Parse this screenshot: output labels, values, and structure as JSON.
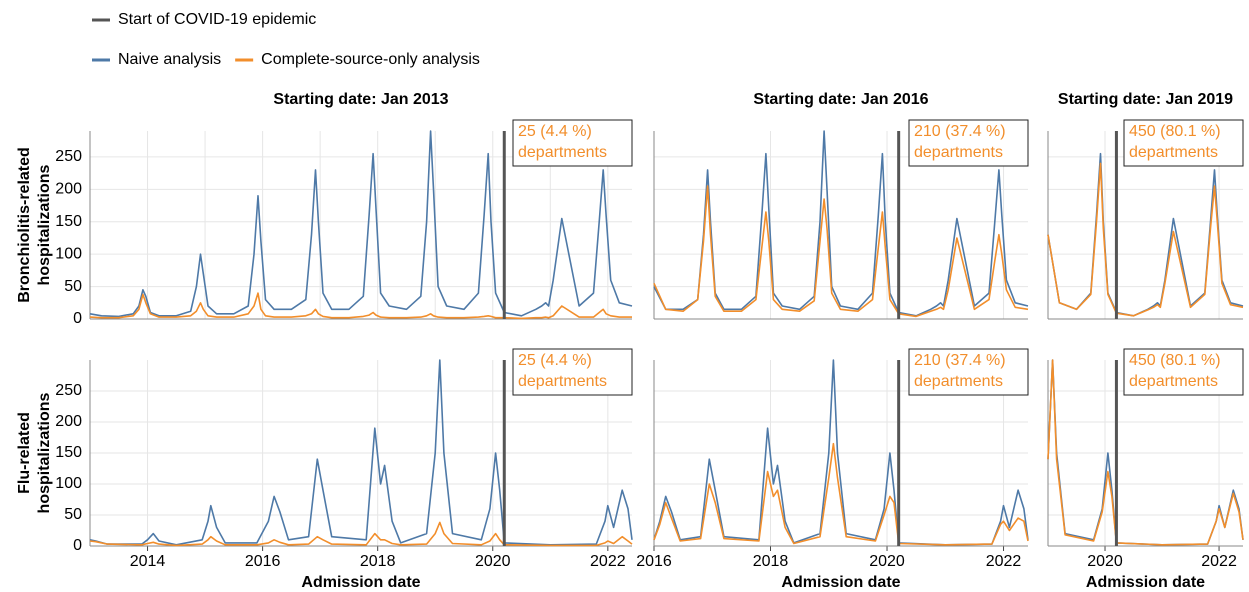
{
  "chart_data": [
    {
      "type": "line",
      "title": "Starting date: Jan 2013",
      "ylabel": [
        "Bronchiolitis-related",
        "hospitalizations"
      ],
      "x": [
        2013.0,
        2013.2,
        2013.5,
        2013.75,
        2013.85,
        2013.92,
        2013.97,
        2014.05,
        2014.2,
        2014.5,
        2014.75,
        2014.85,
        2014.92,
        2014.97,
        2015.05,
        2015.2,
        2015.5,
        2015.75,
        2015.85,
        2015.92,
        2015.97,
        2016.05,
        2016.2,
        2016.5,
        2016.75,
        2016.85,
        2016.92,
        2016.97,
        2017.05,
        2017.2,
        2017.5,
        2017.75,
        2017.85,
        2017.92,
        2017.97,
        2018.05,
        2018.2,
        2018.5,
        2018.75,
        2018.85,
        2018.92,
        2018.97,
        2019.05,
        2019.2,
        2019.5,
        2019.75,
        2019.85,
        2019.92,
        2019.97,
        2020.05,
        2020.2,
        2020.5,
        2020.75,
        2020.85,
        2020.92,
        2020.97,
        2021.05,
        2021.2,
        2021.5,
        2021.75,
        2021.85,
        2021.92,
        2021.97,
        2022.05,
        2022.2,
        2022.42
      ],
      "series": [
        {
          "name": "Naive analysis",
          "color": "#4e79a7",
          "values": [
            8,
            5,
            4,
            8,
            20,
            45,
            35,
            10,
            5,
            5,
            12,
            50,
            100,
            70,
            20,
            8,
            8,
            20,
            100,
            190,
            120,
            30,
            15,
            15,
            30,
            130,
            230,
            150,
            40,
            15,
            15,
            35,
            160,
            255,
            170,
            40,
            20,
            15,
            35,
            150,
            290,
            200,
            50,
            20,
            15,
            40,
            160,
            255,
            150,
            40,
            10,
            5,
            15,
            20,
            25,
            20,
            60,
            155,
            20,
            40,
            150,
            230,
            160,
            60,
            25,
            20
          ]
        },
        {
          "name": "Complete-source-only analysis",
          "color": "#f28e2b",
          "values": [
            3,
            2,
            2,
            5,
            15,
            38,
            25,
            8,
            3,
            3,
            5,
            12,
            25,
            15,
            5,
            3,
            3,
            8,
            20,
            40,
            15,
            5,
            3,
            3,
            5,
            8,
            15,
            8,
            4,
            2,
            2,
            4,
            6,
            10,
            6,
            3,
            2,
            2,
            3,
            5,
            8,
            5,
            3,
            2,
            2,
            3,
            4,
            5,
            4,
            2,
            2,
            1,
            2,
            2,
            3,
            2,
            5,
            20,
            3,
            3,
            10,
            15,
            8,
            5,
            3,
            3
          ]
        }
      ],
      "vline": {
        "x": 2020.2,
        "name": "Start of COVID-19 epidemic",
        "color": "#555555"
      },
      "annotation": [
        "25 (4.4 %)",
        "departments"
      ],
      "xlim": [
        2013.0,
        2022.42
      ],
      "xticks": [
        2014,
        2015,
        2016,
        2017,
        2018,
        2019,
        2020,
        2021,
        2022
      ],
      "ylim": [
        0,
        290
      ],
      "yticks": [
        0,
        50,
        100,
        150,
        200,
        250
      ],
      "grid": true
    },
    {
      "type": "line",
      "title": "Starting date: Jan 2016",
      "x": [
        2016.0,
        2016.2,
        2016.5,
        2016.75,
        2016.85,
        2016.92,
        2016.97,
        2017.05,
        2017.2,
        2017.5,
        2017.75,
        2017.85,
        2017.92,
        2017.97,
        2018.05,
        2018.2,
        2018.5,
        2018.75,
        2018.85,
        2018.92,
        2018.97,
        2019.05,
        2019.2,
        2019.5,
        2019.75,
        2019.85,
        2019.92,
        2019.97,
        2020.05,
        2020.2,
        2020.5,
        2020.75,
        2020.85,
        2020.92,
        2020.97,
        2021.05,
        2021.2,
        2021.5,
        2021.75,
        2021.85,
        2021.92,
        2021.97,
        2022.05,
        2022.2,
        2022.42
      ],
      "series": [
        {
          "color": "#4e79a7",
          "values": [
            50,
            15,
            15,
            30,
            130,
            230,
            150,
            40,
            15,
            15,
            35,
            160,
            255,
            170,
            40,
            20,
            15,
            35,
            150,
            290,
            200,
            50,
            20,
            15,
            40,
            160,
            255,
            150,
            40,
            10,
            5,
            15,
            20,
            25,
            20,
            60,
            155,
            20,
            40,
            150,
            230,
            160,
            60,
            25,
            20
          ]
        },
        {
          "color": "#f28e2b",
          "values": [
            55,
            15,
            12,
            30,
            120,
            205,
            130,
            35,
            12,
            12,
            30,
            110,
            165,
            120,
            30,
            15,
            12,
            28,
            120,
            185,
            140,
            40,
            15,
            12,
            30,
            110,
            165,
            110,
            30,
            8,
            4,
            12,
            15,
            18,
            15,
            45,
            125,
            15,
            30,
            90,
            130,
            100,
            45,
            18,
            15
          ]
        }
      ],
      "vline": {
        "x": 2020.2,
        "color": "#555555"
      },
      "annotation": [
        "210 (37.4 %)",
        "departments"
      ],
      "xlim": [
        2016.0,
        2022.42
      ],
      "xticks": [
        2016,
        2018,
        2020,
        2022
      ],
      "ylim": [
        0,
        290
      ],
      "yticks": [
        0,
        50,
        100,
        150,
        200,
        250
      ],
      "grid": true
    },
    {
      "type": "line",
      "title": "Starting date: Jan 2019",
      "x": [
        2019.0,
        2019.2,
        2019.5,
        2019.75,
        2019.85,
        2019.92,
        2019.97,
        2020.05,
        2020.2,
        2020.5,
        2020.75,
        2020.85,
        2020.92,
        2020.97,
        2021.05,
        2021.2,
        2021.5,
        2021.75,
        2021.85,
        2021.92,
        2021.97,
        2022.05,
        2022.2,
        2022.42
      ],
      "series": [
        {
          "color": "#4e79a7",
          "values": [
            130,
            25,
            15,
            40,
            160,
            255,
            150,
            40,
            10,
            5,
            15,
            20,
            25,
            20,
            60,
            155,
            20,
            40,
            150,
            230,
            160,
            60,
            25,
            20
          ]
        },
        {
          "color": "#f28e2b",
          "values": [
            130,
            25,
            15,
            38,
            150,
            240,
            140,
            38,
            9,
            5,
            14,
            18,
            22,
            18,
            55,
            135,
            18,
            38,
            140,
            205,
            150,
            55,
            22,
            18
          ]
        }
      ],
      "vline": {
        "x": 2020.2,
        "color": "#555555"
      },
      "annotation": [
        "450 (80.1 %)",
        "departments"
      ],
      "xlim": [
        2019.0,
        2022.42
      ],
      "xticks": [
        2020,
        2022
      ],
      "ylim": [
        0,
        290
      ],
      "yticks": [
        0,
        50,
        100,
        150,
        200,
        250
      ],
      "grid": true
    },
    {
      "type": "line",
      "ylabel": [
        "Flu-related",
        "hospitalizations"
      ],
      "xlabel": "Admission date",
      "x": [
        2013.0,
        2013.1,
        2013.3,
        2013.9,
        2014.0,
        2014.1,
        2014.2,
        2014.5,
        2014.95,
        2015.05,
        2015.1,
        2015.2,
        2015.35,
        2015.9,
        2016.1,
        2016.2,
        2016.3,
        2016.45,
        2016.8,
        2016.95,
        2017.05,
        2017.2,
        2017.8,
        2017.95,
        2018.05,
        2018.12,
        2018.25,
        2018.4,
        2018.85,
        2019.0,
        2019.08,
        2019.15,
        2019.3,
        2019.8,
        2019.95,
        2020.05,
        2020.12,
        2020.2,
        2021.0,
        2021.8,
        2021.95,
        2022.0,
        2022.1,
        2022.25,
        2022.35,
        2022.42
      ],
      "series": [
        {
          "color": "#4e79a7",
          "values": [
            10,
            8,
            3,
            3,
            10,
            20,
            8,
            2,
            10,
            40,
            65,
            30,
            5,
            5,
            40,
            80,
            55,
            10,
            15,
            140,
            90,
            15,
            10,
            190,
            100,
            130,
            40,
            5,
            20,
            150,
            300,
            150,
            20,
            10,
            60,
            150,
            90,
            5,
            2,
            3,
            40,
            65,
            30,
            90,
            60,
            10
          ]
        },
        {
          "color": "#f28e2b",
          "values": [
            8,
            7,
            3,
            2,
            4,
            6,
            3,
            1,
            3,
            10,
            15,
            8,
            2,
            2,
            5,
            10,
            6,
            2,
            3,
            15,
            10,
            3,
            2,
            20,
            10,
            10,
            4,
            2,
            3,
            20,
            38,
            20,
            4,
            2,
            8,
            20,
            10,
            2,
            1,
            1,
            5,
            8,
            4,
            15,
            8,
            3
          ]
        }
      ],
      "vline": {
        "x": 2020.2,
        "color": "#555555"
      },
      "annotation": [
        "25 (4.4 %)",
        "departments"
      ],
      "xlim": [
        2013.0,
        2022.42
      ],
      "xticks": [
        2014,
        2016,
        2018,
        2020,
        2022
      ],
      "ylim": [
        0,
        300
      ],
      "yticks": [
        0,
        50,
        100,
        150,
        200,
        250
      ],
      "grid": true
    },
    {
      "type": "line",
      "xlabel": "Admission date",
      "x": [
        2016.0,
        2016.1,
        2016.2,
        2016.3,
        2016.45,
        2016.8,
        2016.95,
        2017.05,
        2017.2,
        2017.8,
        2017.95,
        2018.05,
        2018.12,
        2018.25,
        2018.4,
        2018.85,
        2019.0,
        2019.08,
        2019.15,
        2019.3,
        2019.8,
        2019.95,
        2020.05,
        2020.12,
        2020.2,
        2021.0,
        2021.8,
        2021.95,
        2022.0,
        2022.1,
        2022.25,
        2022.35,
        2022.42
      ],
      "series": [
        {
          "color": "#4e79a7",
          "values": [
            10,
            40,
            80,
            55,
            10,
            15,
            140,
            90,
            15,
            10,
            190,
            100,
            130,
            40,
            5,
            20,
            150,
            300,
            150,
            20,
            10,
            60,
            150,
            90,
            5,
            2,
            3,
            40,
            65,
            30,
            90,
            60,
            10
          ]
        },
        {
          "color": "#f28e2b",
          "values": [
            10,
            35,
            70,
            45,
            8,
            12,
            100,
            70,
            12,
            8,
            120,
            80,
            90,
            30,
            4,
            15,
            110,
            165,
            110,
            15,
            8,
            50,
            80,
            70,
            4,
            2,
            3,
            35,
            40,
            25,
            45,
            40,
            8
          ]
        }
      ],
      "vline": {
        "x": 2020.2,
        "color": "#555555"
      },
      "annotation": [
        "210 (37.4 %)",
        "departments"
      ],
      "xlim": [
        2016.0,
        2022.42
      ],
      "xticks": [
        2016,
        2018,
        2020,
        2022
      ],
      "ylim": [
        0,
        300
      ],
      "yticks": [
        0,
        50,
        100,
        150,
        200,
        250
      ],
      "grid": true
    },
    {
      "type": "line",
      "xlabel": "Admission date",
      "x": [
        2019.0,
        2019.08,
        2019.15,
        2019.3,
        2019.8,
        2019.95,
        2020.05,
        2020.12,
        2020.2,
        2021.0,
        2021.8,
        2021.95,
        2022.0,
        2022.1,
        2022.25,
        2022.35,
        2022.42
      ],
      "series": [
        {
          "color": "#4e79a7",
          "values": [
            140,
            300,
            150,
            20,
            10,
            60,
            150,
            90,
            5,
            2,
            3,
            40,
            65,
            30,
            90,
            60,
            10
          ]
        },
        {
          "color": "#f28e2b",
          "values": [
            140,
            300,
            140,
            18,
            8,
            55,
            120,
            80,
            5,
            2,
            3,
            40,
            60,
            30,
            85,
            55,
            10
          ]
        }
      ],
      "vline": {
        "x": 2020.2,
        "color": "#555555"
      },
      "annotation": [
        "450 (80.1 %)",
        "departments"
      ],
      "xlim": [
        2019.0,
        2022.42
      ],
      "xticks": [
        2020,
        2022
      ],
      "ylim": [
        0,
        300
      ],
      "yticks": [
        0,
        50,
        100,
        150,
        200,
        250
      ],
      "grid": true
    }
  ]
}
